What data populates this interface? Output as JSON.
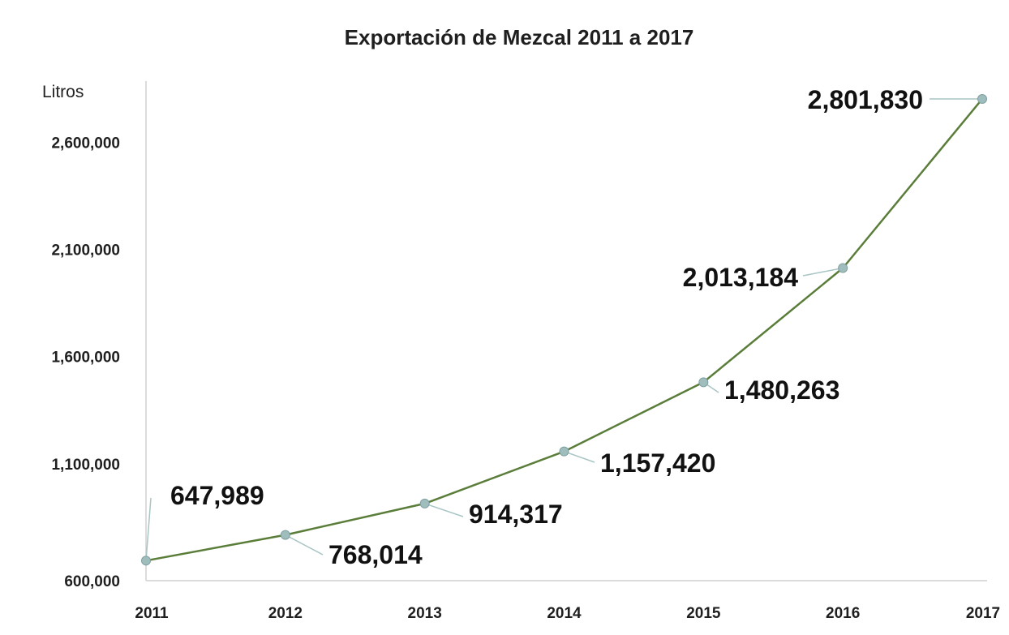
{
  "chart_data": {
    "type": "line",
    "title": "Exportación de Mezcal 2011 a 2017",
    "ylabel": "Litros",
    "xlabel": "",
    "x": [
      "2011",
      "2012",
      "2013",
      "2014",
      "2015",
      "2016",
      "2017"
    ],
    "series": [
      {
        "values": [
          647989,
          768014,
          914317,
          1157420,
          1480263,
          2013184,
          2801830
        ],
        "data_labels": [
          "647,989",
          "768,014",
          "914,317",
          "1,157,420",
          "1,480,263",
          "2,013,184",
          "2,801,830"
        ]
      }
    ],
    "yticks": [
      600000,
      1100000,
      1600000,
      2100000,
      2600000
    ],
    "ytick_labels": [
      "600,000",
      "1,100,000",
      "1,600,000",
      "2,100,000",
      "2,600,000"
    ],
    "ylim": [
      600000,
      2801830
    ],
    "grid": false,
    "legend": "none",
    "colors": {
      "line": "#5a7d3a",
      "marker": "#9fbdbd",
      "leader": "#a8c4c4",
      "axis": "#d0d0d0"
    }
  }
}
